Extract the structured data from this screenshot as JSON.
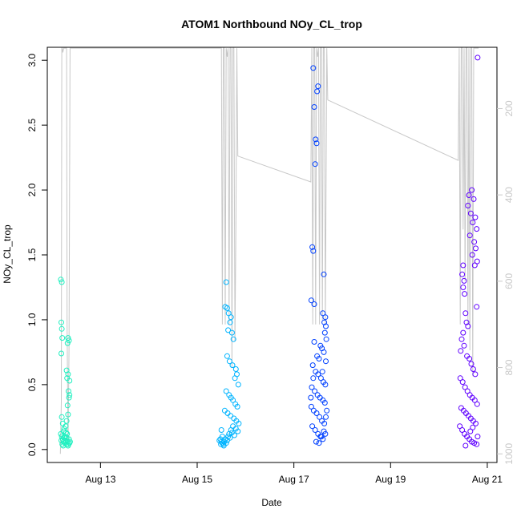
{
  "chart_data": {
    "type": "scatter",
    "title": "ATOM1 Northbound NOy_CL_trop",
    "xlabel": "Date",
    "ylabel": "NOy_CL_trop",
    "x_ticks": [
      "Aug 13",
      "Aug 15",
      "Aug 17",
      "Aug 19",
      "Aug 21"
    ],
    "x_tick_days": [
      13,
      15,
      17,
      19,
      21
    ],
    "xlim": [
      11.9,
      21.2
    ],
    "ylim": [
      -0.1,
      3.1
    ],
    "y_ticks": [
      "0.0",
      "0.5",
      "1.0",
      "1.5",
      "2.0",
      "2.5",
      "3.0"
    ],
    "y_tick_values": [
      0,
      0.5,
      1,
      1.5,
      2,
      2.5,
      3
    ],
    "y2_label": "",
    "y2_ticks": [
      "200",
      "400",
      "600",
      "800",
      "1000"
    ],
    "y2_tick_values": [
      200,
      400,
      600,
      800,
      1000
    ],
    "y2_lim_inverted": [
      58,
      1020
    ],
    "pressure_color": "#c8c8c8",
    "series": [
      {
        "color": "#20f0c0",
        "x_center": 12.3,
        "x_spread": 0.1,
        "points": [
          [
            12.18,
            1.31
          ],
          [
            12.2,
            1.29
          ],
          [
            12.19,
            0.98
          ],
          [
            12.2,
            0.93
          ],
          [
            12.21,
            0.86
          ],
          [
            12.19,
            0.74
          ],
          [
            12.33,
            0.86
          ],
          [
            12.35,
            0.84
          ],
          [
            12.32,
            0.82
          ],
          [
            12.3,
            0.61
          ],
          [
            12.33,
            0.58
          ],
          [
            12.31,
            0.55
          ],
          [
            12.36,
            0.53
          ],
          [
            12.34,
            0.45
          ],
          [
            12.36,
            0.42
          ],
          [
            12.35,
            0.4
          ],
          [
            12.32,
            0.34
          ],
          [
            12.2,
            0.25
          ],
          [
            12.22,
            0.2
          ],
          [
            12.25,
            0.16
          ],
          [
            12.3,
            0.22
          ],
          [
            12.33,
            0.27
          ],
          [
            12.18,
            0.12
          ],
          [
            12.2,
            0.1
          ],
          [
            12.22,
            0.08
          ],
          [
            12.24,
            0.06
          ],
          [
            12.26,
            0.05
          ],
          [
            12.28,
            0.07
          ],
          [
            12.3,
            0.09
          ],
          [
            12.32,
            0.06
          ],
          [
            12.34,
            0.04
          ],
          [
            12.36,
            0.05
          ],
          [
            12.21,
            0.04
          ],
          [
            12.23,
            0.03
          ],
          [
            12.27,
            0.1
          ],
          [
            12.29,
            0.13
          ],
          [
            12.31,
            0.12
          ],
          [
            12.35,
            0.08
          ],
          [
            12.37,
            0.06
          ],
          [
            12.19,
            0.07
          ],
          [
            12.25,
            0.09
          ],
          [
            12.3,
            0.04
          ],
          [
            12.33,
            0.03
          ],
          [
            12.24,
            0.14
          ],
          [
            12.28,
            0.18
          ]
        ]
      },
      {
        "color": "#00b4ff",
        "x_center": 15.7,
        "x_spread": 0.2,
        "points": [
          [
            15.6,
            1.29
          ],
          [
            15.58,
            1.1
          ],
          [
            15.62,
            1.09
          ],
          [
            15.65,
            1.05
          ],
          [
            15.7,
            1.02
          ],
          [
            15.68,
            0.98
          ],
          [
            15.64,
            0.92
          ],
          [
            15.72,
            0.9
          ],
          [
            15.75,
            0.85
          ],
          [
            15.62,
            0.72
          ],
          [
            15.67,
            0.68
          ],
          [
            15.73,
            0.65
          ],
          [
            15.8,
            0.62
          ],
          [
            15.82,
            0.58
          ],
          [
            15.78,
            0.55
          ],
          [
            15.85,
            0.5
          ],
          [
            15.6,
            0.45
          ],
          [
            15.66,
            0.42
          ],
          [
            15.7,
            0.4
          ],
          [
            15.74,
            0.38
          ],
          [
            15.79,
            0.35
          ],
          [
            15.83,
            0.33
          ],
          [
            15.57,
            0.3
          ],
          [
            15.63,
            0.28
          ],
          [
            15.69,
            0.26
          ],
          [
            15.76,
            0.24
          ],
          [
            15.81,
            0.22
          ],
          [
            15.86,
            0.2
          ],
          [
            15.5,
            0.15
          ],
          [
            15.52,
            0.1
          ],
          [
            15.48,
            0.08
          ],
          [
            15.5,
            0.06
          ],
          [
            15.52,
            0.05
          ],
          [
            15.54,
            0.04
          ],
          [
            15.56,
            0.06
          ],
          [
            15.58,
            0.08
          ],
          [
            15.6,
            0.05
          ],
          [
            15.62,
            0.07
          ],
          [
            15.64,
            0.1
          ],
          [
            15.66,
            0.12
          ],
          [
            15.68,
            0.09
          ],
          [
            15.7,
            0.15
          ],
          [
            15.72,
            0.13
          ],
          [
            15.74,
            0.18
          ],
          [
            15.77,
            0.11
          ],
          [
            15.8,
            0.16
          ],
          [
            15.84,
            0.14
          ],
          [
            15.46,
            0.07
          ],
          [
            15.49,
            0.04
          ],
          [
            15.55,
            0.03
          ]
        ]
      },
      {
        "color": "#0040ff",
        "x_center": 17.5,
        "x_spread": 0.25,
        "points": [
          [
            17.4,
            2.94
          ],
          [
            17.5,
            2.8
          ],
          [
            17.48,
            2.76
          ],
          [
            17.42,
            2.64
          ],
          [
            17.45,
            2.39
          ],
          [
            17.47,
            2.36
          ],
          [
            17.44,
            2.2
          ],
          [
            17.38,
            1.56
          ],
          [
            17.4,
            1.53
          ],
          [
            17.62,
            1.35
          ],
          [
            17.36,
            1.15
          ],
          [
            17.42,
            1.12
          ],
          [
            17.6,
            1.05
          ],
          [
            17.65,
            1.02
          ],
          [
            17.63,
            0.98
          ],
          [
            17.66,
            0.95
          ],
          [
            17.64,
            0.9
          ],
          [
            17.67,
            0.85
          ],
          [
            17.42,
            0.83
          ],
          [
            17.55,
            0.8
          ],
          [
            17.58,
            0.78
          ],
          [
            17.62,
            0.75
          ],
          [
            17.48,
            0.72
          ],
          [
            17.52,
            0.7
          ],
          [
            17.66,
            0.68
          ],
          [
            17.39,
            0.65
          ],
          [
            17.45,
            0.6
          ],
          [
            17.5,
            0.58
          ],
          [
            17.56,
            0.55
          ],
          [
            17.61,
            0.52
          ],
          [
            17.65,
            0.5
          ],
          [
            17.37,
            0.48
          ],
          [
            17.43,
            0.45
          ],
          [
            17.49,
            0.42
          ],
          [
            17.54,
            0.4
          ],
          [
            17.6,
            0.38
          ],
          [
            17.64,
            0.36
          ],
          [
            17.36,
            0.33
          ],
          [
            17.41,
            0.3
          ],
          [
            17.47,
            0.28
          ],
          [
            17.53,
            0.25
          ],
          [
            17.58,
            0.22
          ],
          [
            17.63,
            0.2
          ],
          [
            17.38,
            0.18
          ],
          [
            17.44,
            0.15
          ],
          [
            17.5,
            0.12
          ],
          [
            17.55,
            0.1
          ],
          [
            17.6,
            0.08
          ],
          [
            17.65,
            0.12
          ],
          [
            17.46,
            0.06
          ],
          [
            17.52,
            0.05
          ],
          [
            17.57,
            0.1
          ],
          [
            17.62,
            0.14
          ],
          [
            17.66,
            0.25
          ],
          [
            17.4,
            0.55
          ],
          [
            17.59,
            0.6
          ],
          [
            17.35,
            0.4
          ],
          [
            17.68,
            0.3
          ]
        ]
      },
      {
        "color": "#6000ff",
        "x_center": 20.6,
        "x_spread": 0.25,
        "points": [
          [
            20.8,
            3.02
          ],
          [
            20.68,
            2.0
          ],
          [
            20.62,
            1.96
          ],
          [
            20.72,
            1.93
          ],
          [
            20.6,
            1.88
          ],
          [
            20.66,
            1.82
          ],
          [
            20.75,
            1.79
          ],
          [
            20.7,
            1.75
          ],
          [
            20.78,
            1.7
          ],
          [
            20.64,
            1.65
          ],
          [
            20.73,
            1.6
          ],
          [
            20.76,
            1.55
          ],
          [
            20.69,
            1.5
          ],
          [
            20.79,
            1.45
          ],
          [
            20.74,
            1.42
          ],
          [
            20.5,
            1.42
          ],
          [
            20.48,
            1.35
          ],
          [
            20.52,
            1.3
          ],
          [
            20.5,
            1.25
          ],
          [
            20.53,
            1.2
          ],
          [
            20.78,
            1.1
          ],
          [
            20.55,
            1.05
          ],
          [
            20.57,
            0.98
          ],
          [
            20.6,
            0.95
          ],
          [
            20.5,
            0.9
          ],
          [
            20.47,
            0.85
          ],
          [
            20.52,
            0.8
          ],
          [
            20.45,
            0.76
          ],
          [
            20.58,
            0.72
          ],
          [
            20.63,
            0.7
          ],
          [
            20.67,
            0.66
          ],
          [
            20.71,
            0.62
          ],
          [
            20.75,
            0.58
          ],
          [
            20.44,
            0.55
          ],
          [
            20.49,
            0.52
          ],
          [
            20.54,
            0.48
          ],
          [
            20.59,
            0.45
          ],
          [
            20.64,
            0.42
          ],
          [
            20.69,
            0.4
          ],
          [
            20.74,
            0.38
          ],
          [
            20.79,
            0.35
          ],
          [
            20.46,
            0.32
          ],
          [
            20.51,
            0.3
          ],
          [
            20.56,
            0.28
          ],
          [
            20.61,
            0.26
          ],
          [
            20.66,
            0.24
          ],
          [
            20.71,
            0.22
          ],
          [
            20.76,
            0.2
          ],
          [
            20.43,
            0.18
          ],
          [
            20.48,
            0.15
          ],
          [
            20.53,
            0.12
          ],
          [
            20.58,
            0.1
          ],
          [
            20.63,
            0.08
          ],
          [
            20.68,
            0.06
          ],
          [
            20.73,
            0.05
          ],
          [
            20.78,
            0.04
          ],
          [
            20.55,
            0.03
          ],
          [
            20.65,
            0.14
          ],
          [
            20.7,
            0.17
          ],
          [
            20.8,
            0.1
          ]
        ]
      }
    ],
    "pressure_trace": [
      [
        12.17,
        1000
      ],
      [
        12.19,
        880
      ],
      [
        12.2,
        60
      ],
      [
        12.21,
        60
      ],
      [
        12.22,
        70
      ],
      [
        12.24,
        60
      ],
      [
        12.26,
        60
      ],
      [
        12.28,
        60
      ],
      [
        12.3,
        60
      ],
      [
        12.31,
        700
      ],
      [
        12.33,
        980
      ],
      [
        12.35,
        760
      ],
      [
        12.37,
        60
      ],
      [
        12.38,
        60
      ],
      [
        12.42,
        60
      ],
      [
        12.45,
        60
      ],
      [
        15.5,
        60
      ],
      [
        15.52,
        700
      ],
      [
        15.54,
        60
      ],
      [
        15.56,
        60
      ],
      [
        15.58,
        700
      ],
      [
        15.6,
        60
      ],
      [
        15.62,
        80
      ],
      [
        15.64,
        60
      ],
      [
        15.66,
        700
      ],
      [
        15.68,
        60
      ],
      [
        15.7,
        60
      ],
      [
        15.72,
        800
      ],
      [
        15.74,
        60
      ],
      [
        15.76,
        60
      ],
      [
        15.78,
        740
      ],
      [
        15.8,
        480
      ],
      [
        15.82,
        60
      ],
      [
        15.84,
        310
      ],
      [
        17.35,
        370
      ],
      [
        17.37,
        60
      ],
      [
        17.39,
        700
      ],
      [
        17.41,
        60
      ],
      [
        17.43,
        60
      ],
      [
        17.45,
        700
      ],
      [
        17.47,
        60
      ],
      [
        17.49,
        80
      ],
      [
        17.51,
        60
      ],
      [
        17.53,
        700
      ],
      [
        17.55,
        60
      ],
      [
        17.57,
        60
      ],
      [
        17.59,
        690
      ],
      [
        17.61,
        60
      ],
      [
        17.63,
        60
      ],
      [
        17.65,
        700
      ],
      [
        17.68,
        60
      ],
      [
        17.7,
        180
      ],
      [
        20.4,
        320
      ],
      [
        20.42,
        60
      ],
      [
        20.44,
        700
      ],
      [
        20.46,
        60
      ],
      [
        20.48,
        60
      ],
      [
        20.5,
        480
      ],
      [
        20.52,
        60
      ],
      [
        20.54,
        600
      ],
      [
        20.56,
        60
      ],
      [
        20.58,
        60
      ],
      [
        20.6,
        700
      ],
      [
        20.62,
        60
      ],
      [
        20.64,
        760
      ],
      [
        20.66,
        60
      ],
      [
        20.68,
        60
      ],
      [
        20.7,
        820
      ],
      [
        20.72,
        60
      ],
      [
        20.76,
        60
      ],
      [
        20.8,
        60
      ],
      [
        20.82,
        60
      ]
    ]
  }
}
